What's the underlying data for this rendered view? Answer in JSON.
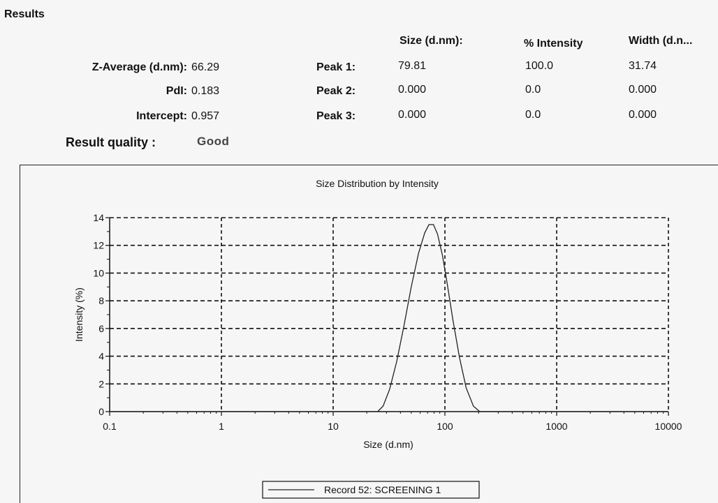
{
  "results": {
    "title": "Results",
    "z_average": {
      "label": "Z-Average (d.nm):",
      "value": "66.29"
    },
    "pdi": {
      "label": "PdI:",
      "value": "0.183"
    },
    "intercept": {
      "label": "Intercept:",
      "value": "0.957"
    },
    "quality": {
      "label": "Result quality :",
      "value": "Good"
    },
    "columns": [
      "Size (d.nm):",
      "% Intensity",
      "Width (d.n..."
    ],
    "peaks": [
      {
        "label": "Peak 1:",
        "size": "79.81",
        "intensity": "100.0",
        "width": "31.74"
      },
      {
        "label": "Peak 2:",
        "size": "0.000",
        "intensity": "0.0",
        "width": "0.000"
      },
      {
        "label": "Peak 3:",
        "size": "0.000",
        "intensity": "0.0",
        "width": "0.000"
      }
    ]
  },
  "chart_data": {
    "type": "line",
    "title": "Size Distribution by Intensity",
    "xlabel": "Size (d.nm)",
    "ylabel": "Intensity (%)",
    "x_scale": "log",
    "xlim": [
      0.1,
      10000
    ],
    "ylim": [
      0,
      14
    ],
    "x_ticks": [
      "0.1",
      "1",
      "10",
      "100",
      "1000",
      "10000"
    ],
    "y_ticks": [
      "0",
      "2",
      "4",
      "6",
      "8",
      "10",
      "12",
      "14"
    ],
    "grid": true,
    "legend_position": "bottom-center",
    "series": [
      {
        "name": "Record 52: SCREENING 1",
        "color": "#222222",
        "x": [
          0.1,
          25,
          28,
          32,
          37,
          43,
          50,
          58,
          66,
          72,
          79,
          86,
          95,
          105,
          118,
          135,
          155,
          180,
          205,
          230,
          10000
        ],
        "y": [
          0,
          0,
          0.4,
          1.6,
          3.6,
          6.2,
          9.0,
          11.4,
          12.9,
          13.5,
          13.5,
          12.8,
          11.3,
          9.2,
          6.6,
          3.9,
          1.7,
          0.4,
          0,
          0,
          0
        ]
      }
    ]
  }
}
